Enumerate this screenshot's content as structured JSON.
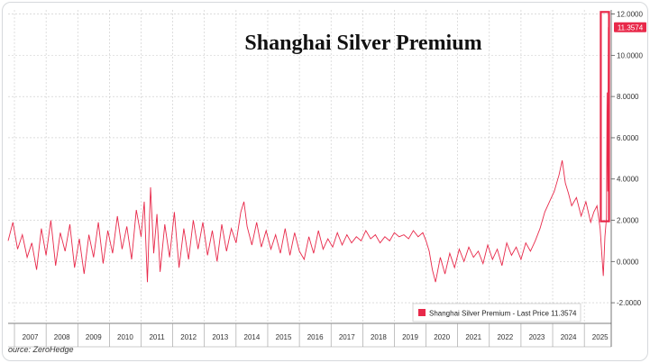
{
  "source_text": "ource: ZeroHedge",
  "chart_data": {
    "type": "line",
    "title": "Shanghai Silver Premium",
    "xlabel": "",
    "ylabel": "",
    "x_tick_labels": [
      "2007",
      "2008",
      "2009",
      "2010",
      "2011",
      "2012",
      "2013",
      "2014",
      "2015",
      "2016",
      "2017",
      "2018",
      "2019",
      "2020",
      "2021",
      "2022",
      "2023",
      "2024",
      "2025"
    ],
    "xlim": [
      2006.8,
      2025.85
    ],
    "ylim": [
      -3.0,
      12.2
    ],
    "y_tick_labels": [
      "12.0000",
      "10.0000",
      "8.0000",
      "6.0000",
      "4.0000",
      "2.0000",
      "0.0000",
      "-2.0000"
    ],
    "y_ticks": [
      12,
      10,
      8,
      6,
      4,
      2,
      0,
      -2
    ],
    "grid": true,
    "series_color": "#e8294a",
    "highlight_color": "#e8294a",
    "highlight_box": {
      "x_start": 2025.52,
      "x_end": 2025.78,
      "y_start": 1.95,
      "y_end": 12.1
    },
    "last_price_label": "11.3574",
    "last_price_value": 11.3574,
    "legend": {
      "text": "Shanghai Silver Premium - Last Price 11.3574",
      "placement": "bottom-right"
    },
    "series": [
      {
        "x": [
          2006.8,
          2006.95,
          2007.1,
          2007.25,
          2007.4,
          2007.55,
          2007.7,
          2007.85,
          2008.0,
          2008.15,
          2008.3,
          2008.45,
          2008.6,
          2008.75,
          2008.9,
          2009.05,
          2009.2,
          2009.35,
          2009.5,
          2009.65,
          2009.8,
          2009.95,
          2010.1,
          2010.25,
          2010.4,
          2010.55,
          2010.7,
          2010.85,
          2011.0,
          2011.1,
          2011.2,
          2011.3,
          2011.4,
          2011.5,
          2011.6,
          2011.75,
          2011.9,
          2012.05,
          2012.2,
          2012.35,
          2012.5,
          2012.65,
          2012.8,
          2012.95,
          2013.1,
          2013.25,
          2013.4,
          2013.55,
          2013.7,
          2013.85,
          2014.0,
          2014.15,
          2014.25,
          2014.35,
          2014.5,
          2014.65,
          2014.8,
          2014.95,
          2015.1,
          2015.25,
          2015.4,
          2015.55,
          2015.7,
          2015.85,
          2016.0,
          2016.15,
          2016.3,
          2016.45,
          2016.6,
          2016.75,
          2016.9,
          2017.05,
          2017.2,
          2017.35,
          2017.5,
          2017.65,
          2017.8,
          2017.95,
          2018.1,
          2018.25,
          2018.4,
          2018.55,
          2018.7,
          2018.85,
          2019.0,
          2019.15,
          2019.3,
          2019.45,
          2019.6,
          2019.75,
          2019.9,
          2020.0,
          2020.1,
          2020.2,
          2020.3,
          2020.45,
          2020.6,
          2020.75,
          2020.9,
          2021.05,
          2021.2,
          2021.35,
          2021.5,
          2021.65,
          2021.8,
          2021.95,
          2022.1,
          2022.25,
          2022.4,
          2022.55,
          2022.7,
          2022.85,
          2023.0,
          2023.15,
          2023.3,
          2023.45,
          2023.6,
          2023.75,
          2023.9,
          2024.05,
          2024.2,
          2024.3,
          2024.4,
          2024.5,
          2024.6,
          2024.75,
          2024.9,
          2025.05,
          2025.2,
          2025.3,
          2025.4,
          2025.5,
          2025.55,
          2025.6,
          2025.65,
          2025.7,
          2025.72,
          2025.74,
          2025.76
        ],
        "values": [
          1.0,
          1.9,
          0.6,
          1.3,
          0.2,
          0.9,
          -0.4,
          1.6,
          0.3,
          2.0,
          -0.2,
          1.4,
          0.5,
          1.8,
          -0.3,
          1.1,
          -0.6,
          1.3,
          0.2,
          1.9,
          -0.1,
          1.5,
          0.4,
          2.2,
          0.6,
          1.7,
          0.1,
          2.5,
          1.2,
          2.9,
          -1.0,
          3.6,
          0.4,
          2.3,
          -0.5,
          1.8,
          0.2,
          2.4,
          -0.3,
          1.6,
          0.1,
          2.0,
          0.6,
          1.9,
          0.3,
          1.5,
          0.0,
          1.8,
          0.5,
          1.6,
          0.9,
          2.4,
          2.9,
          1.7,
          0.8,
          1.9,
          0.7,
          1.5,
          0.6,
          1.3,
          0.4,
          1.6,
          0.3,
          1.4,
          0.5,
          0.1,
          1.2,
          0.4,
          1.5,
          0.6,
          1.1,
          0.7,
          1.4,
          0.8,
          1.3,
          0.9,
          1.2,
          1.0,
          1.5,
          1.1,
          1.3,
          0.9,
          1.2,
          1.0,
          1.4,
          1.2,
          1.3,
          1.1,
          1.5,
          1.2,
          1.4,
          1.0,
          0.5,
          -0.4,
          -1.0,
          0.2,
          -0.6,
          0.4,
          -0.3,
          0.6,
          0.0,
          0.7,
          0.2,
          0.5,
          -0.1,
          0.8,
          0.1,
          0.6,
          -0.2,
          0.9,
          0.3,
          0.7,
          0.1,
          0.9,
          0.5,
          1.0,
          1.6,
          2.4,
          2.9,
          3.4,
          4.2,
          4.9,
          3.8,
          3.3,
          2.7,
          3.1,
          2.2,
          2.9,
          1.9,
          2.4,
          2.7,
          1.6,
          0.4,
          -0.7,
          1.2,
          2.1,
          8.2,
          3.4,
          11.3574
        ]
      }
    ]
  }
}
